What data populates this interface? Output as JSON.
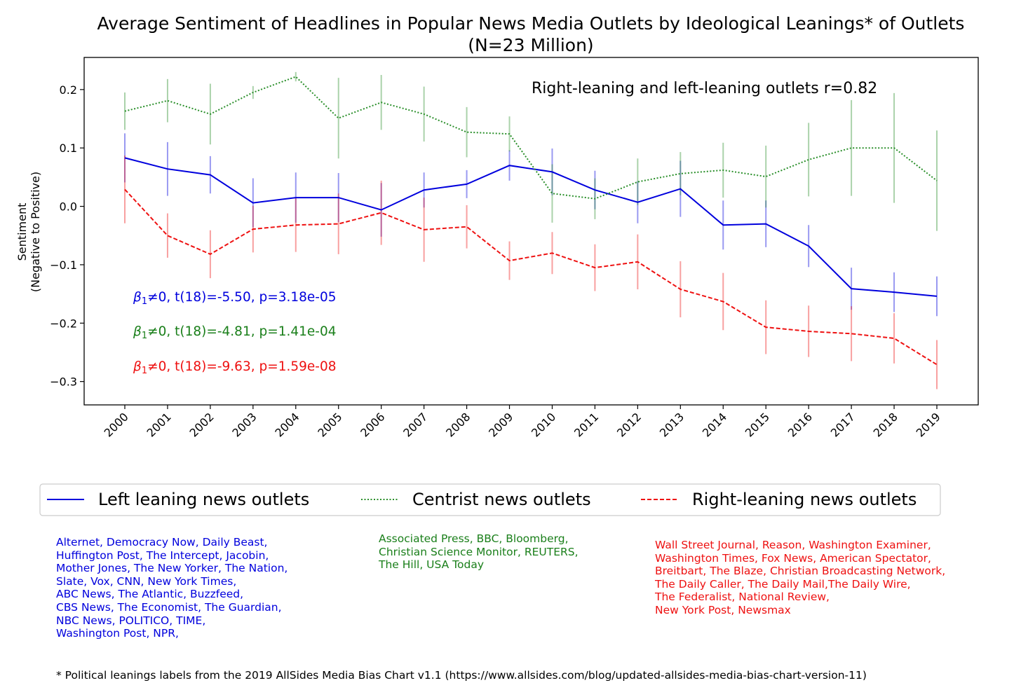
{
  "chart_data": {
    "type": "line",
    "title": "Average Sentiment of Headlines in Popular News Media Outlets by Ideological Leanings* of Outlets",
    "subtitle": "(N=23 Million)",
    "ylabel": "Sentiment",
    "ylabel_sub": "(Negative to Positive)",
    "xlabel": "",
    "ylim": [
      -0.34,
      0.255
    ],
    "yticks": [
      0.2,
      0.1,
      0.0,
      -0.1,
      -0.2,
      -0.3
    ],
    "ytick_labels": [
      "0.2",
      "0.1",
      "0.0",
      "−0.1",
      "−0.2",
      "−0.3"
    ],
    "grid": false,
    "legend_position": "below-plot",
    "categories": [
      "2000",
      "2001",
      "2002",
      "2003",
      "2004",
      "2005",
      "2006",
      "2007",
      "2008",
      "2009",
      "2010",
      "2011",
      "2012",
      "2013",
      "2014",
      "2015",
      "2016",
      "2017",
      "2018",
      "2019"
    ],
    "series": [
      {
        "name": "Left leaning news outlets",
        "color": "#0000dd",
        "dash": "solid",
        "values": [
          0.083,
          0.064,
          0.054,
          0.006,
          0.015,
          0.015,
          -0.006,
          0.028,
          0.038,
          0.07,
          0.059,
          0.028,
          0.007,
          0.03,
          -0.032,
          -0.03,
          -0.068,
          -0.141,
          -0.147,
          -0.154
        ],
        "err": [
          0.042,
          0.046,
          0.032,
          0.042,
          0.043,
          0.042,
          0.046,
          0.03,
          0.024,
          0.026,
          0.04,
          0.033,
          0.036,
          0.048,
          0.042,
          0.04,
          0.036,
          0.036,
          0.034,
          0.034
        ]
      },
      {
        "name": "Centrist news outlets",
        "color": "#2a8f2a",
        "dash": "dotted",
        "values": [
          0.163,
          0.181,
          0.158,
          0.195,
          0.222,
          0.151,
          0.178,
          0.158,
          0.127,
          0.124,
          0.022,
          0.013,
          0.042,
          0.056,
          0.062,
          0.051,
          0.08,
          0.1,
          0.1,
          0.044
        ],
        "err": [
          0.032,
          0.037,
          0.052,
          0.011,
          0.008,
          0.069,
          0.047,
          0.047,
          0.043,
          0.03,
          0.05,
          0.035,
          0.04,
          0.037,
          0.047,
          0.053,
          0.063,
          0.082,
          0.094,
          0.086
        ]
      },
      {
        "name": "Right-leaning news outlets",
        "color": "#ee1111",
        "dash": "dashed",
        "values": [
          0.029,
          -0.05,
          -0.082,
          -0.039,
          -0.032,
          -0.03,
          -0.011,
          -0.04,
          -0.035,
          -0.093,
          -0.08,
          -0.105,
          -0.095,
          -0.142,
          -0.163,
          -0.207,
          -0.214,
          -0.218,
          -0.226,
          -0.271
        ],
        "err": [
          0.058,
          0.038,
          0.041,
          0.04,
          0.046,
          0.052,
          0.055,
          0.055,
          0.037,
          0.033,
          0.036,
          0.04,
          0.047,
          0.048,
          0.049,
          0.046,
          0.044,
          0.047,
          0.043,
          0.042
        ]
      }
    ],
    "annotations": [
      {
        "text": "Right-leaning and left-leaning outlets r=0.82",
        "color": "#000000"
      }
    ],
    "stats": [
      {
        "sym": "β",
        "sub": "1",
        "rest": "≠0, t(18)=-5.50, p=3.18e-05",
        "color": "#0000dd"
      },
      {
        "sym": "β",
        "sub": "1",
        "rest": "≠0, t(18)=-4.81, p=1.41e-04",
        "color": "#1a7f1a"
      },
      {
        "sym": "β",
        "sub": "1",
        "rest": "≠0, t(18)=-9.63, p=1.59e-08",
        "color": "#ee1111"
      }
    ]
  },
  "outlet_lists": {
    "left": {
      "color": "#0000dd",
      "lines": [
        "Alternet, Democracy Now, Daily Beast,",
        "Huffington Post, The Intercept, Jacobin,",
        "Mother Jones, The New Yorker, The Nation,",
        "Slate, Vox, CNN, New York Times,",
        "ABC News, The Atlantic, Buzzfeed,",
        "CBS News, The Economist, The Guardian,",
        "NBC News, POLITICO, TIME,",
        "Washington Post, NPR,"
      ]
    },
    "center": {
      "color": "#1a7f1a",
      "lines": [
        "Associated Press, BBC, Bloomberg,",
        "Christian Science Monitor, REUTERS,",
        "The Hill, USA Today"
      ]
    },
    "right": {
      "color": "#ee1111",
      "lines": [
        "Wall Street Journal, Reason, Washington Examiner,",
        "Washington Times, Fox News, American Spectator,",
        "Breitbart, The Blaze, Christian Broadcasting Network,",
        "The Daily Caller, The Daily Mail,The Daily Wire,",
        "The Federalist, National Review,",
        "New York Post, Newsmax"
      ]
    }
  },
  "footnote": "* Political leanings labels from the 2019 AllSides Media Bias Chart v1.1 (https://www.allsides.com/blog/updated-allsides-media-bias-chart-version-11)"
}
